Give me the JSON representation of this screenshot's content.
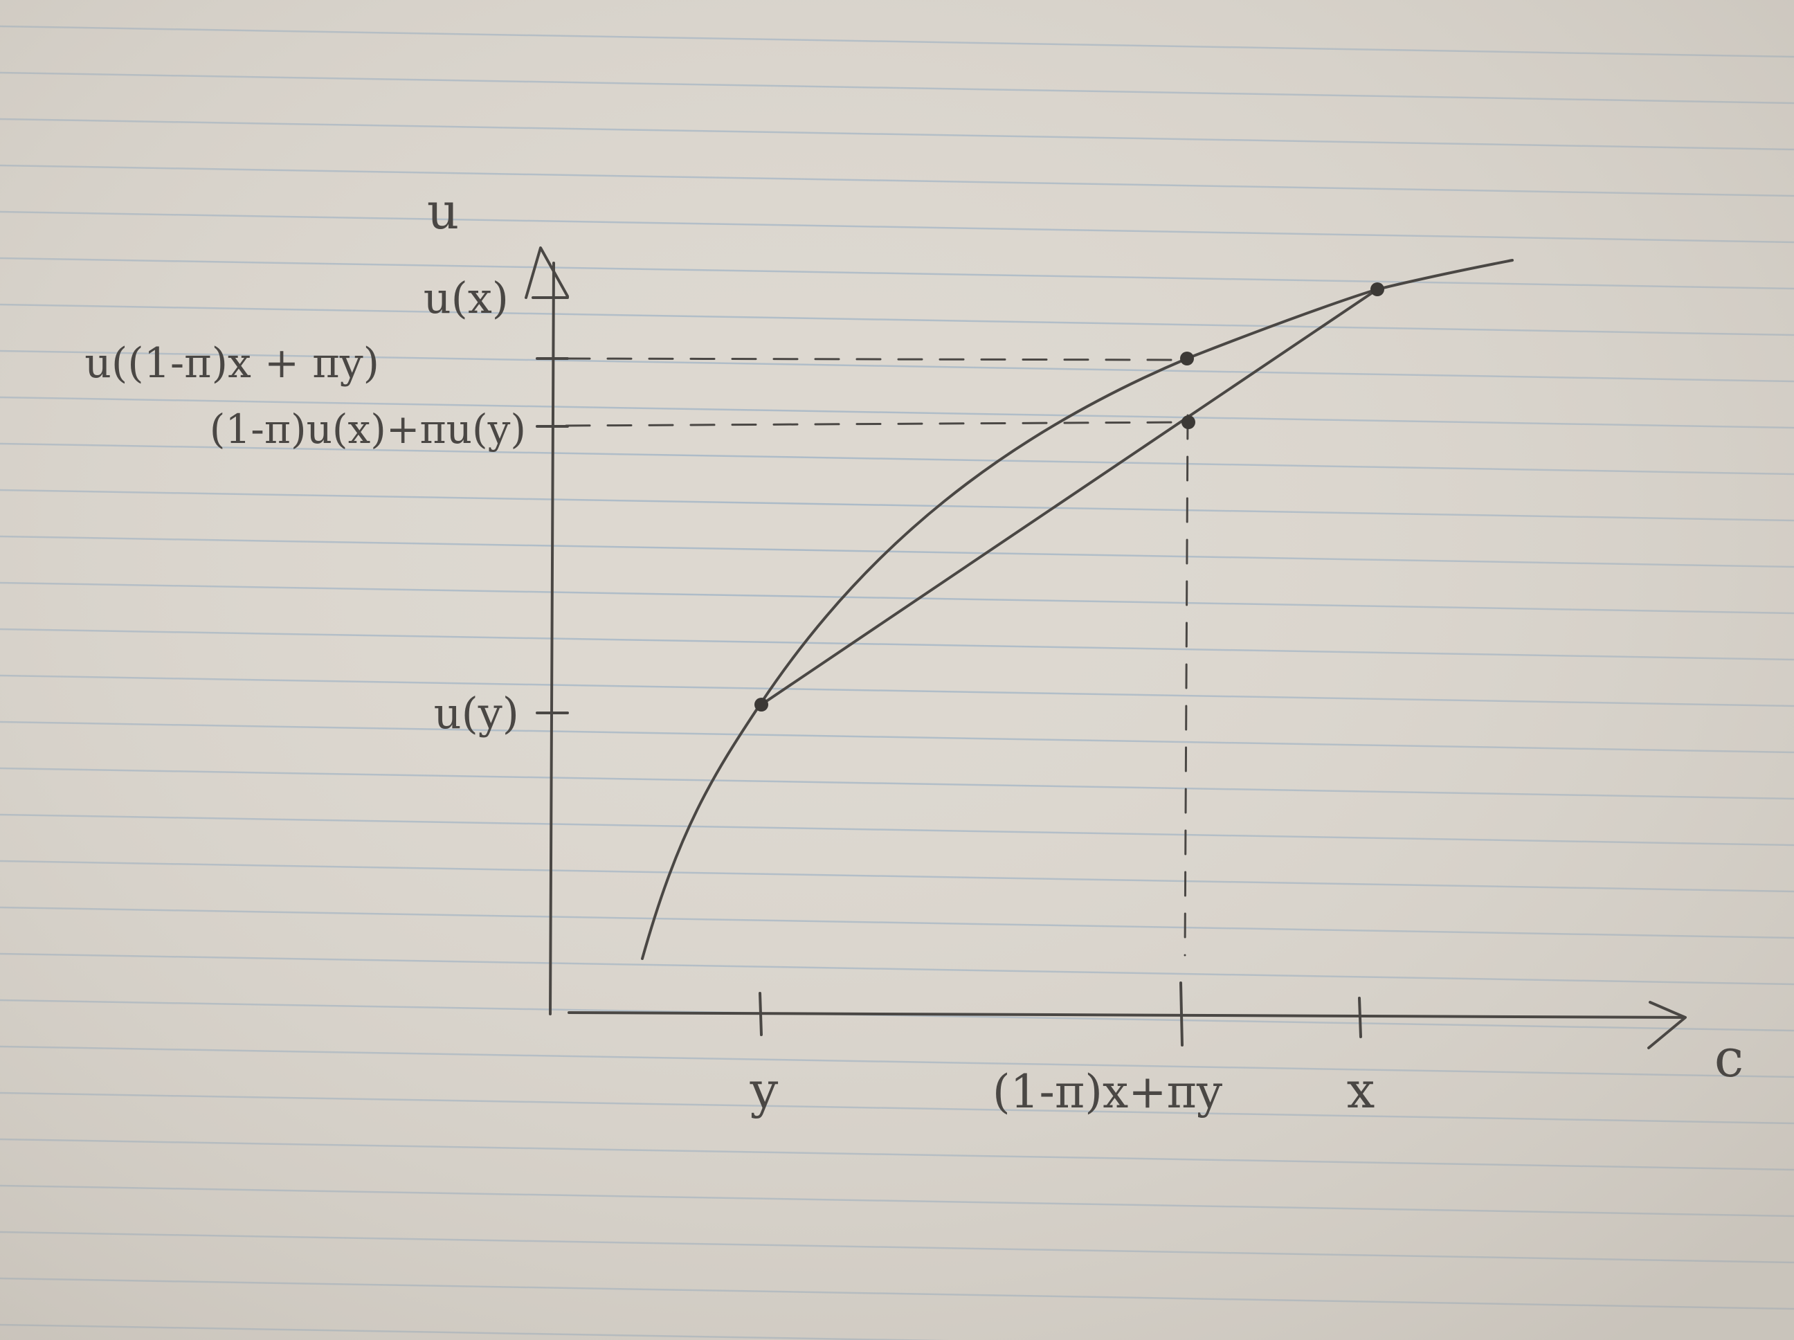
{
  "diagram": {
    "axes": {
      "y_axis_label": "u",
      "x_axis_label": "c"
    },
    "y_ticks": [
      {
        "id": "ux",
        "label": "u(x)"
      },
      {
        "id": "u_mix",
        "label": "u((1-π)x + πy)"
      },
      {
        "id": "expected_u",
        "label": "(1-π)u(x)+πu(y)"
      },
      {
        "id": "uy",
        "label": "u(y)"
      }
    ],
    "x_ticks": [
      {
        "id": "y",
        "label": "y"
      },
      {
        "id": "mix",
        "label": "(1-π)x+πy"
      },
      {
        "id": "x",
        "label": "x"
      }
    ],
    "colors": {
      "paper": "#ddd8d0",
      "rule_line": "#9fb3c4",
      "ink": "#4a4744"
    }
  }
}
